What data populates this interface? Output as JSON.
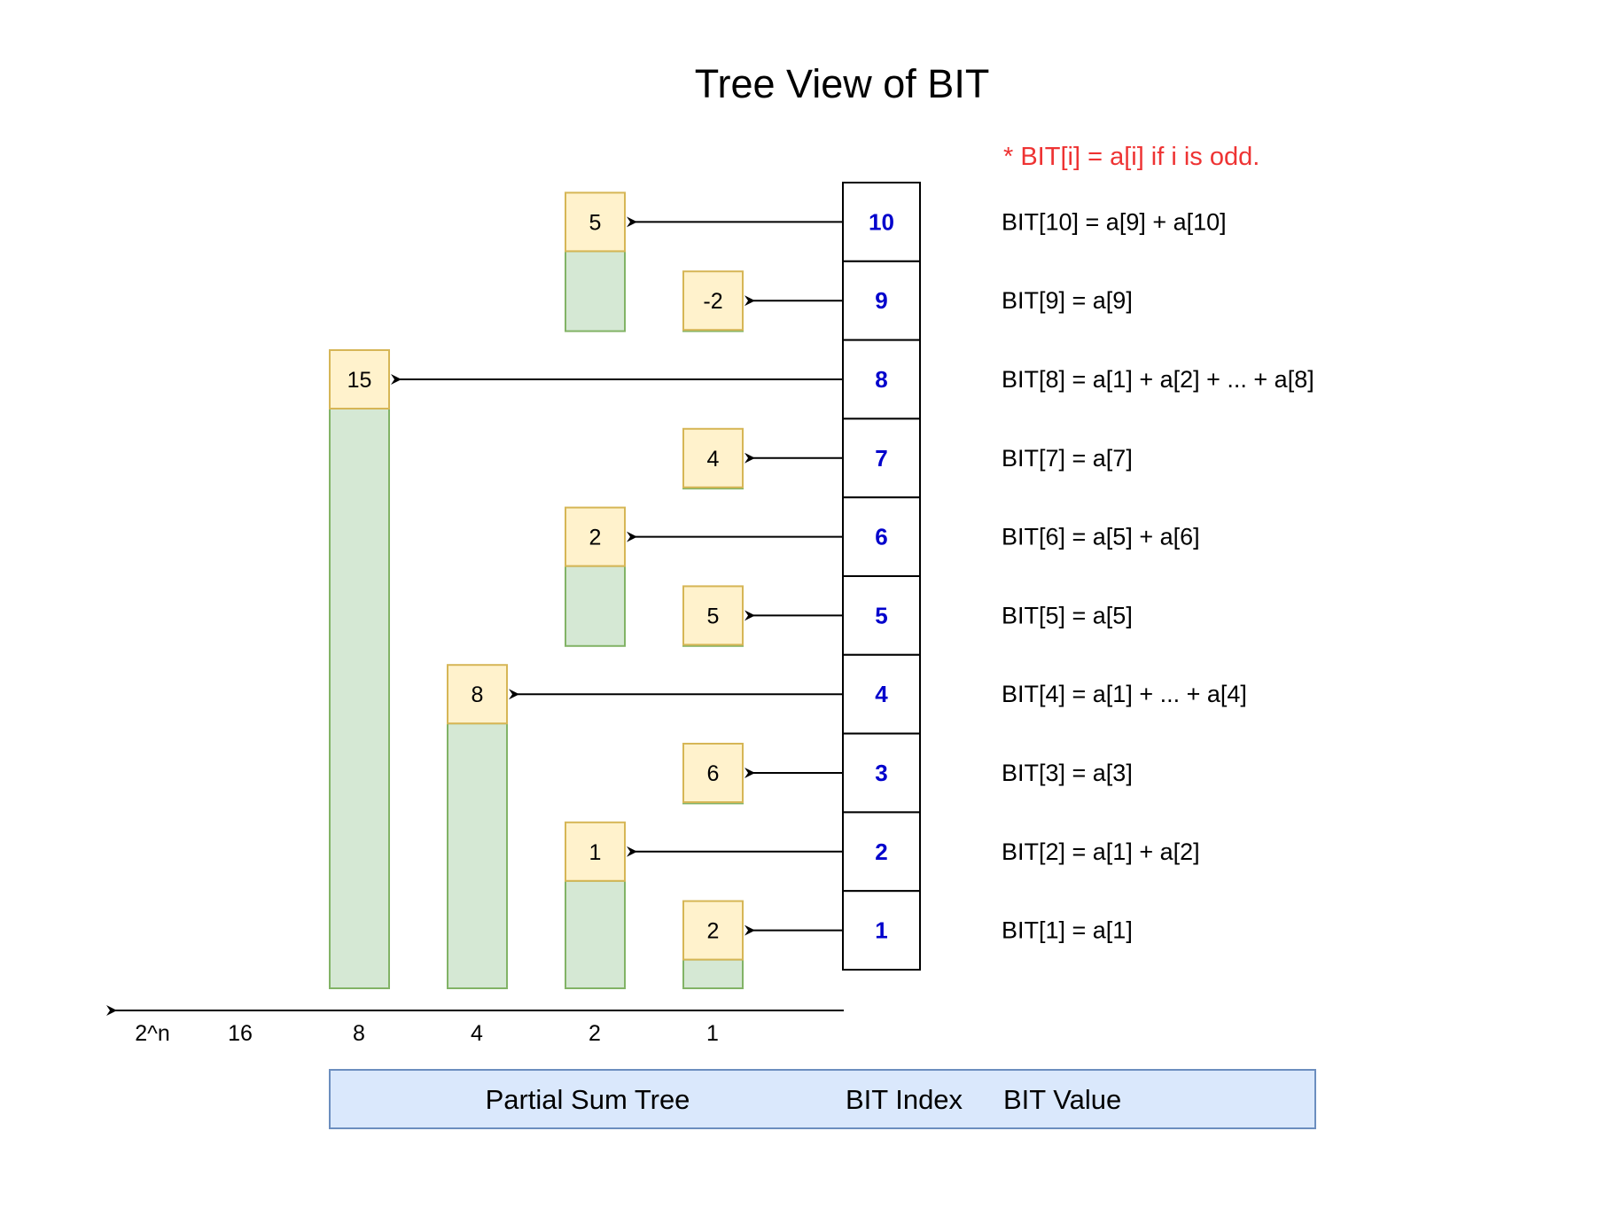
{
  "title": "Tree View of BIT",
  "note": "* BIT[i] = a[i] if i is odd.",
  "colors": {
    "note": "#ee3333",
    "index_text": "#0000cc",
    "value_fill": "#fff2cc",
    "value_stroke": "#d6b656",
    "bar_fill": "#d5e8d4",
    "bar_stroke": "#82b366",
    "legend_fill": "#dae8fc",
    "legend_stroke": "#6c8ebf"
  },
  "entries": [
    {
      "index": "10",
      "value": "5",
      "span": 2,
      "formula": "BIT[10] = a[9] + a[10]"
    },
    {
      "index": "9",
      "value": "-2",
      "span": 1,
      "formula": "BIT[9] = a[9]"
    },
    {
      "index": "8",
      "value": "15",
      "span": 8,
      "formula": "BIT[8] = a[1] + a[2] + ... + a[8]"
    },
    {
      "index": "7",
      "value": "4",
      "span": 1,
      "formula": "BIT[7] = a[7]"
    },
    {
      "index": "6",
      "value": "2",
      "span": 2,
      "formula": "BIT[6] = a[5] + a[6]"
    },
    {
      "index": "5",
      "value": "5",
      "span": 1,
      "formula": "BIT[5] = a[5]"
    },
    {
      "index": "4",
      "value": "8",
      "span": 4,
      "formula": "BIT[4] = a[1] + ... + a[4]"
    },
    {
      "index": "3",
      "value": "6",
      "span": 1,
      "formula": "BIT[3] = a[3]"
    },
    {
      "index": "2",
      "value": "1",
      "span": 2,
      "formula": "BIT[2] = a[1] + a[2]"
    },
    {
      "index": "1",
      "value": "2",
      "span": 1,
      "formula": "BIT[1] = a[1]"
    }
  ],
  "axis": {
    "labels": [
      "2^n",
      "16",
      "8",
      "4",
      "2",
      "1"
    ]
  },
  "legend": {
    "partial_sum_tree": "Partial Sum Tree",
    "bit_index": "BIT Index",
    "bit_value": "BIT Value"
  }
}
